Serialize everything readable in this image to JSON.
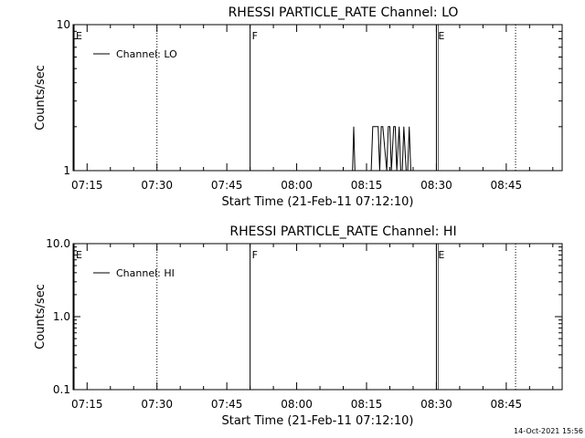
{
  "timestamp": "14-Oct-2021 15:56",
  "chart_data": [
    {
      "type": "line",
      "title": "RHESSI PARTICLE_RATE Channel: LO",
      "xlabel": "Start Time (21-Feb-11 07:12:10)",
      "ylabel": "Counts/sec",
      "y_scale": "log",
      "ylim": [
        1,
        10
      ],
      "y_ticks": [
        "1",
        "10"
      ],
      "xlim": [
        "07:12",
        "08:57"
      ],
      "x_ticks": [
        "07:15",
        "07:30",
        "07:45",
        "08:00",
        "08:15",
        "08:30",
        "08:45"
      ],
      "legend": {
        "entries": [
          "Channel: LO"
        ],
        "position": "top-left"
      },
      "markers": [
        {
          "label": "E",
          "time": "07:12",
          "style": "solid"
        },
        {
          "label": "",
          "time": "07:30",
          "style": "dotted"
        },
        {
          "label": "F",
          "time": "07:50",
          "style": "solid"
        },
        {
          "label": "E",
          "time": "08:30",
          "style": "solid"
        },
        {
          "label": "",
          "time": "08:47",
          "style": "dotted"
        }
      ],
      "series": [
        {
          "name": "Channel: LO",
          "x": [
            "08:12:00",
            "08:12:15",
            "08:12:30",
            "08:12:45",
            "08:16:00",
            "08:16:20",
            "08:16:40",
            "08:17:30",
            "08:17:50",
            "08:18:10",
            "08:18:30",
            "08:19:20",
            "08:19:40",
            "08:20:00",
            "08:20:20",
            "08:20:50",
            "08:21:10",
            "08:21:30",
            "08:22:00",
            "08:22:20",
            "08:22:40",
            "08:23:00",
            "08:23:30",
            "08:23:50",
            "08:24:10",
            "08:24:30"
          ],
          "y": [
            1,
            2,
            1,
            1,
            1,
            2,
            2,
            2,
            1,
            2,
            2,
            1,
            2,
            2,
            1,
            2,
            2,
            1,
            2,
            1,
            1,
            2,
            1,
            1,
            2,
            1
          ]
        }
      ]
    },
    {
      "type": "line",
      "title": "RHESSI PARTICLE_RATE Channel: HI",
      "xlabel": "Start Time (21-Feb-11 07:12:10)",
      "ylabel": "Counts/sec",
      "y_scale": "log",
      "ylim": [
        0.1,
        10
      ],
      "y_ticks": [
        "0.1",
        "1.0",
        "10.0"
      ],
      "xlim": [
        "07:12",
        "08:57"
      ],
      "x_ticks": [
        "07:15",
        "07:30",
        "07:45",
        "08:00",
        "08:15",
        "08:30",
        "08:45"
      ],
      "legend": {
        "entries": [
          "Channel: HI"
        ],
        "position": "top-left"
      },
      "markers": [
        {
          "label": "E",
          "time": "07:12",
          "style": "solid"
        },
        {
          "label": "",
          "time": "07:30",
          "style": "dotted"
        },
        {
          "label": "F",
          "time": "07:50",
          "style": "solid"
        },
        {
          "label": "E",
          "time": "08:30",
          "style": "solid"
        },
        {
          "label": "",
          "time": "08:47",
          "style": "dotted"
        }
      ],
      "series": [
        {
          "name": "Channel: HI",
          "x": [],
          "y": []
        }
      ]
    }
  ]
}
